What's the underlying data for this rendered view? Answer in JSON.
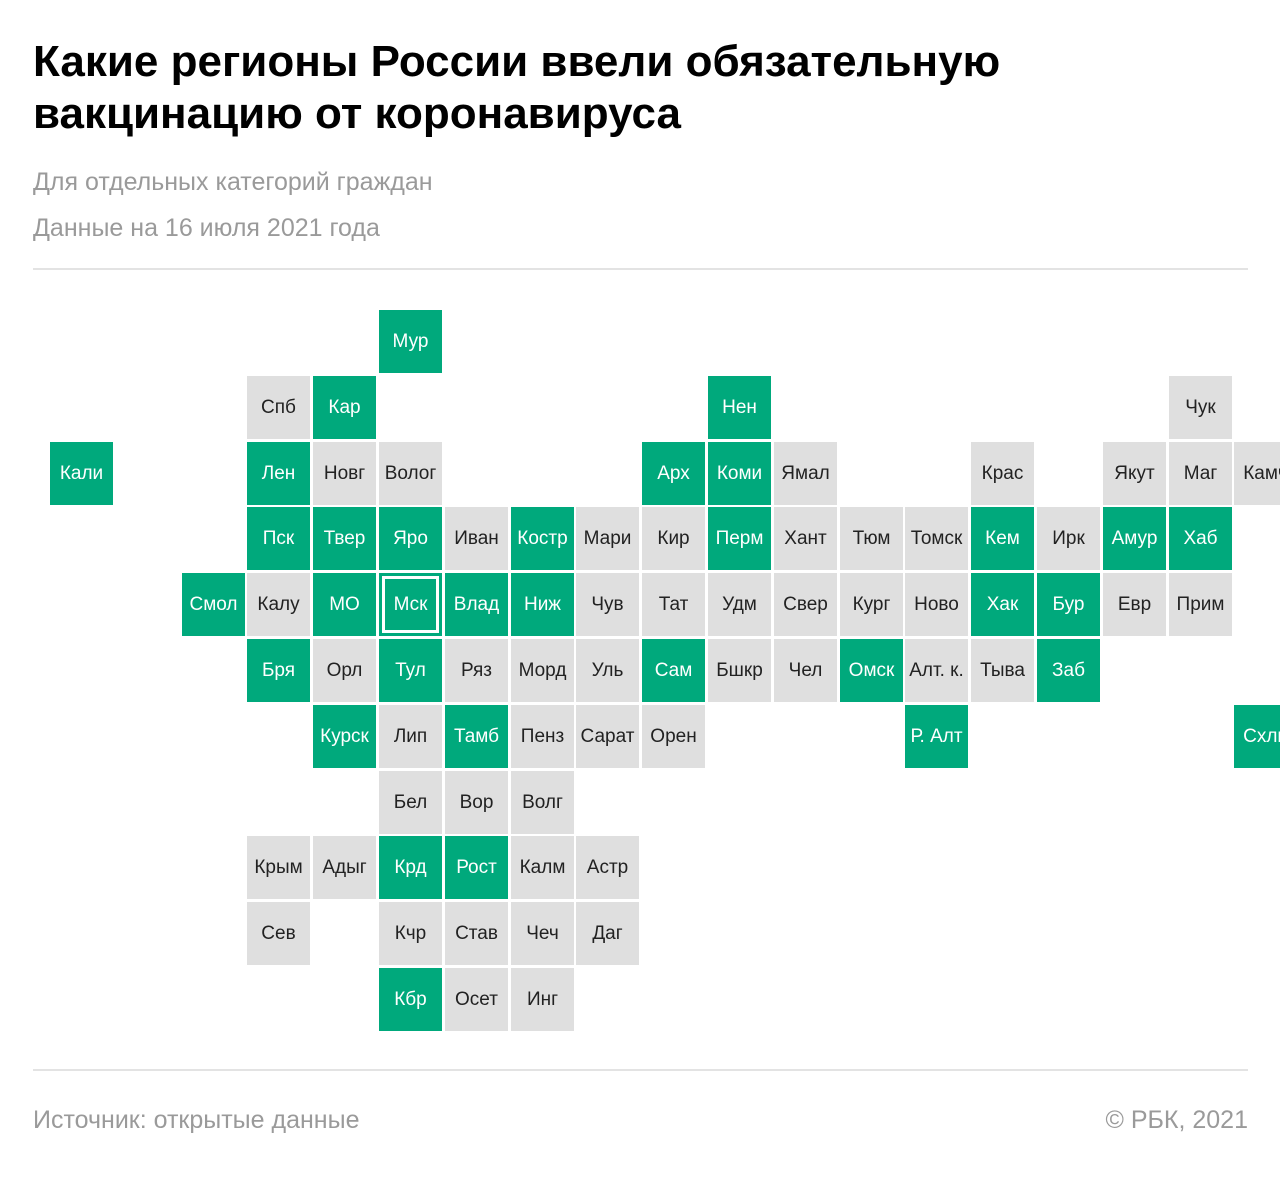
{
  "title": "Какие регионы России ввели обязательную вакцинацию от коронавируса",
  "subtitle": "Для отдельных категорий граждан",
  "date_note": "Данные на 16 июля 2021 года",
  "source": "Источник:  открытые данные",
  "credit": "©  РБК, 2021",
  "colors": {
    "mandatory": "#00a97c",
    "other": "#dfdfdf"
  },
  "regions": [
    {
      "label": "Мур",
      "col": 5,
      "row": 0,
      "mandatory": true
    },
    {
      "label": "Спб",
      "col": 3,
      "row": 1,
      "mandatory": false
    },
    {
      "label": "Кар",
      "col": 4,
      "row": 1,
      "mandatory": true
    },
    {
      "label": "Нен",
      "col": 10,
      "row": 1,
      "mandatory": true
    },
    {
      "label": "Чук",
      "col": 17,
      "row": 1,
      "mandatory": false
    },
    {
      "label": "Кали",
      "col": 0,
      "row": 2,
      "mandatory": true
    },
    {
      "label": "Лен",
      "col": 3,
      "row": 2,
      "mandatory": true
    },
    {
      "label": "Новг",
      "col": 4,
      "row": 2,
      "mandatory": false
    },
    {
      "label": "Волог",
      "col": 5,
      "row": 2,
      "mandatory": false
    },
    {
      "label": "Арх",
      "col": 9,
      "row": 2,
      "mandatory": true
    },
    {
      "label": "Коми",
      "col": 10,
      "row": 2,
      "mandatory": true
    },
    {
      "label": "Ямал",
      "col": 11,
      "row": 2,
      "mandatory": false
    },
    {
      "label": "Крас",
      "col": 14,
      "row": 2,
      "mandatory": false
    },
    {
      "label": "Якут",
      "col": 16,
      "row": 2,
      "mandatory": false
    },
    {
      "label": "Маг",
      "col": 17,
      "row": 2,
      "mandatory": false
    },
    {
      "label": "Камч",
      "col": 18,
      "row": 2,
      "mandatory": false
    },
    {
      "label": "Пск",
      "col": 3,
      "row": 3,
      "mandatory": true
    },
    {
      "label": "Твер",
      "col": 4,
      "row": 3,
      "mandatory": true
    },
    {
      "label": "Яро",
      "col": 5,
      "row": 3,
      "mandatory": true
    },
    {
      "label": "Иван",
      "col": 6,
      "row": 3,
      "mandatory": false
    },
    {
      "label": "Костр",
      "col": 7,
      "row": 3,
      "mandatory": true
    },
    {
      "label": "Мари",
      "col": 8,
      "row": 3,
      "mandatory": false
    },
    {
      "label": "Кир",
      "col": 9,
      "row": 3,
      "mandatory": false
    },
    {
      "label": "Перм",
      "col": 10,
      "row": 3,
      "mandatory": true
    },
    {
      "label": "Хант",
      "col": 11,
      "row": 3,
      "mandatory": false
    },
    {
      "label": "Тюм",
      "col": 12,
      "row": 3,
      "mandatory": false
    },
    {
      "label": "Томск",
      "col": 13,
      "row": 3,
      "mandatory": false
    },
    {
      "label": "Кем",
      "col": 14,
      "row": 3,
      "mandatory": true
    },
    {
      "label": "Ирк",
      "col": 15,
      "row": 3,
      "mandatory": false
    },
    {
      "label": "Амур",
      "col": 16,
      "row": 3,
      "mandatory": true
    },
    {
      "label": "Хаб",
      "col": 17,
      "row": 3,
      "mandatory": true
    },
    {
      "label": "Смол",
      "col": 2,
      "row": 4,
      "mandatory": true
    },
    {
      "label": "Калу",
      "col": 3,
      "row": 4,
      "mandatory": false
    },
    {
      "label": "МО",
      "col": 4,
      "row": 4,
      "mandatory": true
    },
    {
      "label": "Мск",
      "col": 5,
      "row": 4,
      "mandatory": true,
      "highlight": true
    },
    {
      "label": "Влад",
      "col": 6,
      "row": 4,
      "mandatory": true
    },
    {
      "label": "Ниж",
      "col": 7,
      "row": 4,
      "mandatory": true
    },
    {
      "label": "Чув",
      "col": 8,
      "row": 4,
      "mandatory": false
    },
    {
      "label": "Тат",
      "col": 9,
      "row": 4,
      "mandatory": false
    },
    {
      "label": "Удм",
      "col": 10,
      "row": 4,
      "mandatory": false
    },
    {
      "label": "Свер",
      "col": 11,
      "row": 4,
      "mandatory": false
    },
    {
      "label": "Кург",
      "col": 12,
      "row": 4,
      "mandatory": false
    },
    {
      "label": "Ново",
      "col": 13,
      "row": 4,
      "mandatory": false
    },
    {
      "label": "Хак",
      "col": 14,
      "row": 4,
      "mandatory": true
    },
    {
      "label": "Бур",
      "col": 15,
      "row": 4,
      "mandatory": true
    },
    {
      "label": "Евр",
      "col": 16,
      "row": 4,
      "mandatory": false
    },
    {
      "label": "Прим",
      "col": 17,
      "row": 4,
      "mandatory": false
    },
    {
      "label": "Бря",
      "col": 3,
      "row": 5,
      "mandatory": true
    },
    {
      "label": "Орл",
      "col": 4,
      "row": 5,
      "mandatory": false
    },
    {
      "label": "Тул",
      "col": 5,
      "row": 5,
      "mandatory": true
    },
    {
      "label": "Ряз",
      "col": 6,
      "row": 5,
      "mandatory": false
    },
    {
      "label": "Морд",
      "col": 7,
      "row": 5,
      "mandatory": false
    },
    {
      "label": "Уль",
      "col": 8,
      "row": 5,
      "mandatory": false
    },
    {
      "label": "Сам",
      "col": 9,
      "row": 5,
      "mandatory": true
    },
    {
      "label": "Бшкр",
      "col": 10,
      "row": 5,
      "mandatory": false
    },
    {
      "label": "Чел",
      "col": 11,
      "row": 5,
      "mandatory": false
    },
    {
      "label": "Омск",
      "col": 12,
      "row": 5,
      "mandatory": true
    },
    {
      "label": "Алт. к.",
      "col": 13,
      "row": 5,
      "mandatory": false
    },
    {
      "label": "Тыва",
      "col": 14,
      "row": 5,
      "mandatory": false
    },
    {
      "label": "Заб",
      "col": 15,
      "row": 5,
      "mandatory": true
    },
    {
      "label": "Курск",
      "col": 4,
      "row": 6,
      "mandatory": true
    },
    {
      "label": "Лип",
      "col": 5,
      "row": 6,
      "mandatory": false
    },
    {
      "label": "Тамб",
      "col": 6,
      "row": 6,
      "mandatory": true
    },
    {
      "label": "Пенз",
      "col": 7,
      "row": 6,
      "mandatory": false
    },
    {
      "label": "Сарат",
      "col": 8,
      "row": 6,
      "mandatory": false
    },
    {
      "label": "Орен",
      "col": 9,
      "row": 6,
      "mandatory": false
    },
    {
      "label": "Р. Алт",
      "col": 13,
      "row": 6,
      "mandatory": true
    },
    {
      "label": "Схлн",
      "col": 18,
      "row": 6,
      "mandatory": true
    },
    {
      "label": "Бел",
      "col": 5,
      "row": 7,
      "mandatory": false
    },
    {
      "label": "Вор",
      "col": 6,
      "row": 7,
      "mandatory": false
    },
    {
      "label": "Волг",
      "col": 7,
      "row": 7,
      "mandatory": false
    },
    {
      "label": "Крым",
      "col": 3,
      "row": 8,
      "mandatory": false
    },
    {
      "label": "Адыг",
      "col": 4,
      "row": 8,
      "mandatory": false
    },
    {
      "label": "Крд",
      "col": 5,
      "row": 8,
      "mandatory": true
    },
    {
      "label": "Рост",
      "col": 6,
      "row": 8,
      "mandatory": true
    },
    {
      "label": "Калм",
      "col": 7,
      "row": 8,
      "mandatory": false
    },
    {
      "label": "Астр",
      "col": 8,
      "row": 8,
      "mandatory": false
    },
    {
      "label": "Сев",
      "col": 3,
      "row": 9,
      "mandatory": false
    },
    {
      "label": "Кчр",
      "col": 5,
      "row": 9,
      "mandatory": false
    },
    {
      "label": "Став",
      "col": 6,
      "row": 9,
      "mandatory": false
    },
    {
      "label": "Чеч",
      "col": 7,
      "row": 9,
      "mandatory": false
    },
    {
      "label": "Даг",
      "col": 8,
      "row": 9,
      "mandatory": false
    },
    {
      "label": "Кбр",
      "col": 5,
      "row": 10,
      "mandatory": true
    },
    {
      "label": "Осет",
      "col": 6,
      "row": 10,
      "mandatory": false
    },
    {
      "label": "Инг",
      "col": 7,
      "row": 10,
      "mandatory": false
    }
  ]
}
